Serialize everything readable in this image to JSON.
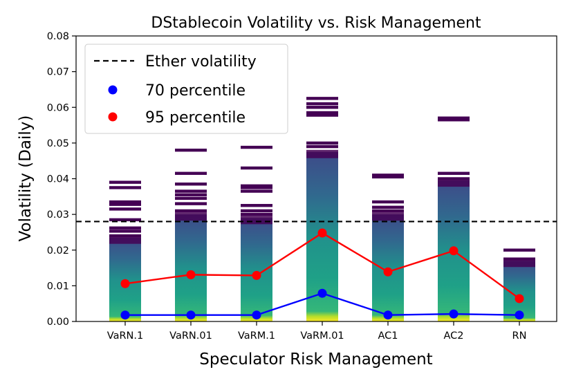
{
  "chart_data": {
    "type": "bar",
    "title": "DStablecoin Volatility vs. Risk Management",
    "xlabel": "Speculator Risk Management",
    "ylabel": "Volatility (Daily)",
    "ylim": [
      0,
      0.08
    ],
    "yticks": [
      "0.00",
      "0.01",
      "0.02",
      "0.03",
      "0.04",
      "0.05",
      "0.06",
      "0.07",
      "0.08"
    ],
    "categories": [
      "VaRN.1",
      "VaRN.01",
      "VaRM.1",
      "VaRM.01",
      "AC1",
      "AC2",
      "RN"
    ],
    "distribution": [
      {
        "category": "VaRN.1",
        "bulk_top": 0.0235,
        "outliers": [
          0.024,
          0.0253,
          0.0262,
          0.0285,
          0.0315,
          0.0328,
          0.0335,
          0.0375,
          0.039
        ]
      },
      {
        "category": "VaRN.01",
        "bulk_top": 0.03,
        "outliers": [
          0.031,
          0.033,
          0.0345,
          0.0355,
          0.0365,
          0.0385,
          0.0415,
          0.048
        ]
      },
      {
        "category": "VaRM.1",
        "bulk_top": 0.029,
        "outliers": [
          0.03,
          0.031,
          0.0325,
          0.0365,
          0.0375,
          0.038,
          0.043,
          0.0488
        ]
      },
      {
        "category": "VaRM.01",
        "bulk_top": 0.0475,
        "outliers": [
          0.049,
          0.05,
          0.0578,
          0.0585,
          0.06,
          0.061,
          0.0625
        ]
      },
      {
        "category": "AC1",
        "bulk_top": 0.03,
        "outliers": [
          0.031,
          0.032,
          0.0335,
          0.0405,
          0.041
        ]
      },
      {
        "category": "AC2",
        "bulk_top": 0.0395,
        "outliers": [
          0.04,
          0.0415,
          0.0565,
          0.057
        ]
      },
      {
        "category": "RN",
        "bulk_top": 0.017,
        "outliers": [
          0.0175,
          0.02
        ]
      }
    ],
    "series": [
      {
        "name": "70 percentile",
        "color": "#0000ff",
        "values": [
          0.0018,
          0.0018,
          0.0018,
          0.0079,
          0.0018,
          0.0021,
          0.0018
        ]
      },
      {
        "name": "95 percentile",
        "color": "#ff0000",
        "values": [
          0.0106,
          0.0131,
          0.0129,
          0.0248,
          0.0139,
          0.0198,
          0.0064
        ]
      }
    ],
    "reference_line": {
      "name": "Ether volatility",
      "value": 0.028,
      "style": "dashed",
      "color": "#000000"
    },
    "legend": {
      "position": "top-left",
      "items": [
        "Ether volatility",
        "70 percentile",
        "95 percentile"
      ]
    }
  }
}
